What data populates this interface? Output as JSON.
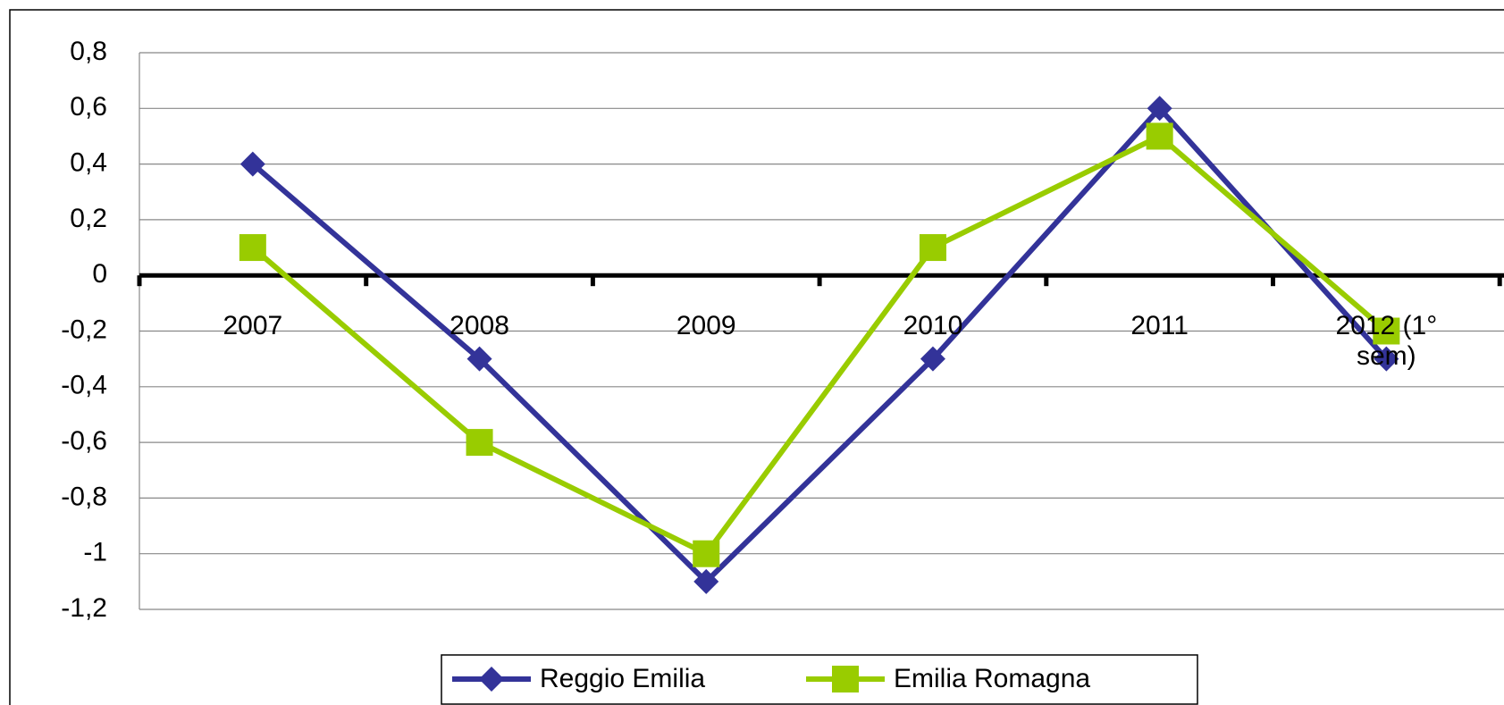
{
  "chart_data": {
    "type": "line",
    "categories": [
      "2007",
      "2008",
      "2009",
      "2010",
      "2011",
      "2012 (1° sem)"
    ],
    "series": [
      {
        "name": "Reggio Emilia",
        "color": "#333399",
        "marker": "diamond",
        "values": [
          0.4,
          -0.3,
          -1.1,
          -0.3,
          0.6,
          -0.3
        ]
      },
      {
        "name": "Emilia Romagna",
        "color": "#99cc00",
        "marker": "square",
        "values": [
          0.1,
          -0.6,
          -1,
          0.1,
          0.5,
          -0.2
        ]
      }
    ],
    "ylim": [
      -1.2,
      0.8
    ],
    "yticks": [
      {
        "value": -1.2,
        "label": "-1,2"
      },
      -1,
      {
        "value": -0.8,
        "label": "-0,8"
      },
      {
        "value": -0.6,
        "label": "-0,6"
      },
      {
        "value": -0.4,
        "label": "-0,4"
      },
      {
        "value": -0.2,
        "label": "-0,2"
      },
      0,
      {
        "value": 0.2,
        "label": "0,2"
      },
      {
        "value": 0.4,
        "label": "0,4"
      },
      {
        "value": 0.6,
        "label": "0,6"
      },
      {
        "value": 0.8,
        "label": "0,8"
      }
    ],
    "grid": true,
    "legend": "bottom"
  }
}
